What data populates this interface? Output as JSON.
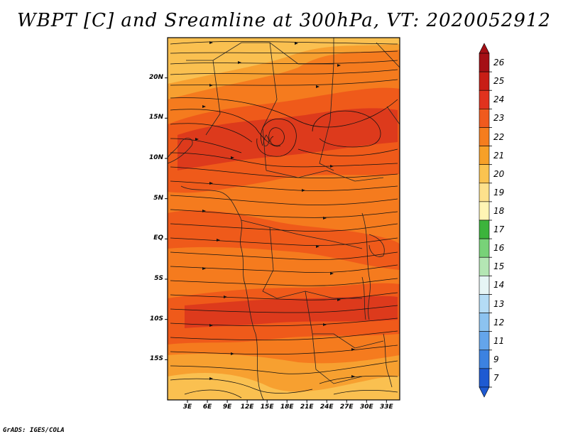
{
  "title": "WBPT [C] and Sreamline at 300hPa, VT: 2020052912",
  "credit": "GrADS: IGES/COLA",
  "map": {
    "lon_range": [
      0,
      35
    ],
    "lat_range": [
      -20,
      25
    ],
    "lat_ticks": [
      {
        "label": "20N",
        "value": 20
      },
      {
        "label": "15N",
        "value": 15
      },
      {
        "label": "10N",
        "value": 10
      },
      {
        "label": "5N",
        "value": 5
      },
      {
        "label": "EQ",
        "value": 0
      },
      {
        "label": "5S",
        "value": -5
      },
      {
        "label": "10S",
        "value": -10
      },
      {
        "label": "15S",
        "value": -15
      }
    ],
    "lon_ticks": [
      {
        "label": "3E",
        "value": 3
      },
      {
        "label": "6E",
        "value": 6
      },
      {
        "label": "9E",
        "value": 9
      },
      {
        "label": "12E",
        "value": 12
      },
      {
        "label": "15E",
        "value": 15
      },
      {
        "label": "18E",
        "value": 18
      },
      {
        "label": "21E",
        "value": 21
      },
      {
        "label": "24E",
        "value": 24
      },
      {
        "label": "27E",
        "value": 27
      },
      {
        "label": "30E",
        "value": 30
      },
      {
        "label": "33E",
        "value": 33
      }
    ],
    "field_colors": {
      "band_24_25": "#dd3a1c",
      "band_23_24": "#ef5a1a",
      "band_22_23": "#f57b1e",
      "band_21_22": "#f7a030",
      "band_20_21": "#fac050"
    }
  },
  "colorbar": {
    "levels": [
      {
        "label": "26",
        "color": "#a50f15"
      },
      {
        "label": "25",
        "color": "#c81e16"
      },
      {
        "label": "24",
        "color": "#e1321e"
      },
      {
        "label": "23",
        "color": "#f05a1e"
      },
      {
        "label": "22",
        "color": "#f57d1e"
      },
      {
        "label": "21",
        "color": "#f7a028"
      },
      {
        "label": "20",
        "color": "#fac350"
      },
      {
        "label": "19",
        "color": "#fde18c"
      },
      {
        "label": "18",
        "color": "#fff5b4"
      },
      {
        "label": "17",
        "color": "#3cb43c"
      },
      {
        "label": "16",
        "color": "#78d278"
      },
      {
        "label": "15",
        "color": "#b4e6b4"
      },
      {
        "label": "14",
        "color": "#e6f5f5"
      },
      {
        "label": "13",
        "color": "#b4dcf5"
      },
      {
        "label": "12",
        "color": "#8cc3f0"
      },
      {
        "label": "11",
        "color": "#64a5eb"
      },
      {
        "label": "9",
        "color": "#3c82e1"
      },
      {
        "label": "7",
        "color": "#1e5ad2"
      }
    ],
    "min_color": "#1e5ad2",
    "max_color": "#a50f15"
  }
}
